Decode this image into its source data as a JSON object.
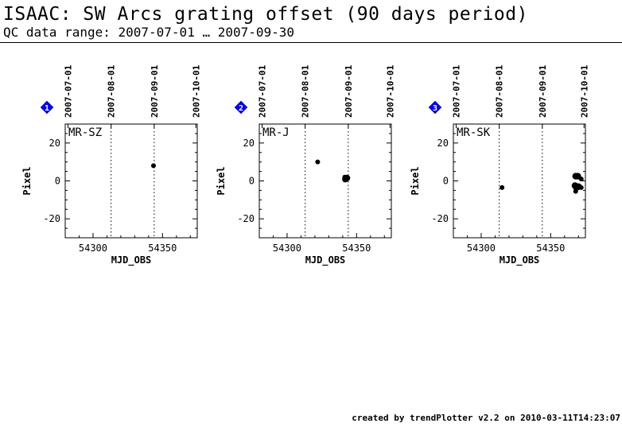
{
  "header": {
    "title": "ISAAC: SW Arcs grating offset (90 days period)",
    "subtitle": "QC data range: 2007-07-01 … 2007-09-30"
  },
  "footer": {
    "text": "created by trendPlotter v2.2 on 2010-03-11T14:23:07"
  },
  "colors": {
    "marker_badge": "#0000ff",
    "points": "#000000",
    "axes": "#000000"
  },
  "chart_data": [
    {
      "type": "scatter",
      "marker_number": "1",
      "panel_label": "MR-SZ",
      "xlabel": "MJD_OBS",
      "ylabel": "Pixel",
      "xlim": [
        54280,
        54375
      ],
      "ylim": [
        -30,
        30
      ],
      "xticks": [
        54300,
        54350
      ],
      "yticks": [
        20,
        0,
        -20
      ],
      "top_date_ticks": [
        {
          "label": "2007-07-01",
          "mjd": 54282
        },
        {
          "label": "2007-08-01",
          "mjd": 54313
        },
        {
          "label": "2007-09-01",
          "mjd": 54344
        },
        {
          "label": "2007-10-01",
          "mjd": 54374
        }
      ],
      "dotted_lines_mjd": [
        54313,
        54344
      ],
      "points": [
        {
          "x": 54343.5,
          "y": 8,
          "size": "small"
        }
      ]
    },
    {
      "type": "scatter",
      "marker_number": "2",
      "panel_label": "MR-J",
      "xlabel": "MJD_OBS",
      "ylabel": "Pixel",
      "xlim": [
        54280,
        54375
      ],
      "ylim": [
        -30,
        30
      ],
      "xticks": [
        54300,
        54350
      ],
      "yticks": [
        20,
        0,
        -20
      ],
      "top_date_ticks": [
        {
          "label": "2007-07-01",
          "mjd": 54282
        },
        {
          "label": "2007-08-01",
          "mjd": 54313
        },
        {
          "label": "2007-09-01",
          "mjd": 54344
        },
        {
          "label": "2007-10-01",
          "mjd": 54374
        }
      ],
      "dotted_lines_mjd": [
        54313,
        54344
      ],
      "points": [
        {
          "x": 54322,
          "y": 10,
          "size": "small"
        },
        {
          "x": 54341.5,
          "y": 2,
          "size": "small"
        },
        {
          "x": 54342,
          "y": 1,
          "size": "large"
        },
        {
          "x": 54343,
          "y": 1.5,
          "size": "large"
        },
        {
          "x": 54341.5,
          "y": 0.5,
          "size": "small"
        }
      ]
    },
    {
      "type": "scatter",
      "marker_number": "3",
      "panel_label": "MR-SK",
      "xlabel": "MJD_OBS",
      "ylabel": "Pixel",
      "xlim": [
        54280,
        54375
      ],
      "ylim": [
        -30,
        30
      ],
      "xticks": [
        54300,
        54350
      ],
      "yticks": [
        20,
        0,
        -20
      ],
      "top_date_ticks": [
        {
          "label": "2007-07-01",
          "mjd": 54282
        },
        {
          "label": "2007-08-01",
          "mjd": 54313
        },
        {
          "label": "2007-09-01",
          "mjd": 54344
        },
        {
          "label": "2007-10-01",
          "mjd": 54374
        }
      ],
      "dotted_lines_mjd": [
        54313,
        54344
      ],
      "points": [
        {
          "x": 54315,
          "y": -3.5,
          "size": "small"
        },
        {
          "x": 54368,
          "y": 2.5,
          "size": "large"
        },
        {
          "x": 54369.5,
          "y": 2.5,
          "size": "large"
        },
        {
          "x": 54367.5,
          "y": -2.5,
          "size": "large"
        },
        {
          "x": 54368.5,
          "y": -3.5,
          "size": "large"
        },
        {
          "x": 54370,
          "y": -3,
          "size": "large"
        },
        {
          "x": 54368,
          "y": -5.5,
          "size": "small"
        },
        {
          "x": 54372,
          "y": 1,
          "size": "small"
        },
        {
          "x": 54372,
          "y": -3.5,
          "size": "small"
        }
      ]
    }
  ]
}
